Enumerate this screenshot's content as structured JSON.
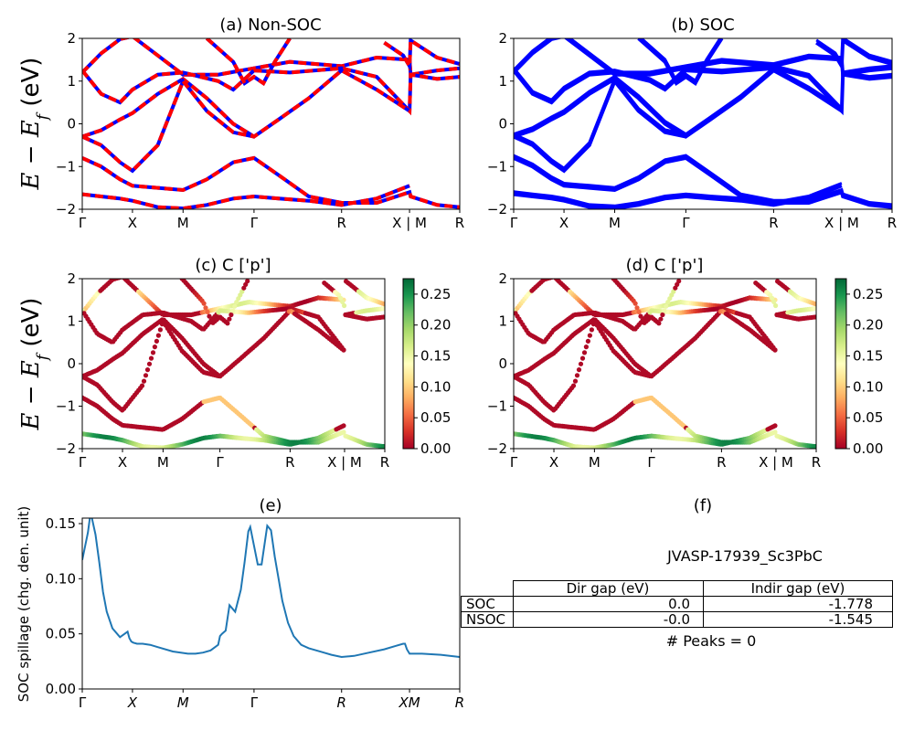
{
  "figure": {
    "ylabel_prefix": "E − E",
    "ylabel_sub": "f",
    "ylabel_suffix": " (eV)"
  },
  "colors": {
    "blue": "#0000ff",
    "red": "#ff0000",
    "spill": "#1f77b4"
  },
  "chart_data": [
    {
      "id": "a",
      "type": "line",
      "title": "(a) Non-SOC",
      "ylim": [
        -2,
        2
      ],
      "yticks": [
        "2",
        "1",
        "0",
        "−1",
        "−2"
      ],
      "xticks": [
        "Γ",
        "X",
        "M",
        "Γ",
        "R",
        "X | M",
        "R"
      ],
      "kpos": [
        0,
        0.133,
        0.267,
        0.455,
        0.687,
        0.867,
        1.0
      ],
      "style": "red dashed over blue",
      "bands_sample": [
        {
          "name": "band1",
          "x": [
            0,
            0.133,
            0.267,
            0.455
          ],
          "y": [
            1.2,
            2.0,
            1.1,
            1.3
          ]
        },
        {
          "name": "band2",
          "x": [
            0,
            0.133,
            0.267,
            0.455
          ],
          "y": [
            -0.3,
            0.2,
            1.1,
            -0.3
          ]
        },
        {
          "name": "band3",
          "x": [
            0,
            0.133,
            0.267,
            0.455
          ],
          "y": [
            -0.8,
            -1.45,
            -1.55,
            -0.8
          ]
        }
      ]
    },
    {
      "id": "b",
      "type": "line",
      "title": "(b) SOC",
      "ylim": [
        -2,
        2
      ],
      "yticks": [
        "2",
        "1",
        "0",
        "−1",
        "−2"
      ],
      "xticks": [
        "Γ",
        "X",
        "M",
        "Γ",
        "R",
        "X | M",
        "R"
      ],
      "style": "blue"
    },
    {
      "id": "c",
      "type": "scatter",
      "title": "(c)  C ['p']",
      "ylim": [
        -2,
        2
      ],
      "yticks": [
        "2",
        "1",
        "0",
        "−1",
        "−2"
      ],
      "xticks": [
        "Γ",
        "X",
        "M",
        "Γ",
        "R",
        "X | M",
        "R"
      ],
      "colorbar": {
        "ticks": [
          "0.25",
          "0.20",
          "0.15",
          "0.10",
          "0.05",
          "0.00"
        ],
        "range": [
          0,
          0.275
        ],
        "cmap": "RdYlGn"
      }
    },
    {
      "id": "d",
      "type": "scatter",
      "title": "(d) C ['p']",
      "ylim": [
        -2,
        2
      ],
      "yticks": [
        "2",
        "1",
        "0",
        "−1",
        "−2"
      ],
      "xticks": [
        "Γ",
        "X",
        "M",
        "Γ",
        "R",
        "X | M",
        "R"
      ],
      "colorbar": {
        "ticks": [
          "0.25",
          "0.20",
          "0.15",
          "0.10",
          "0.05",
          "0.00"
        ],
        "range": [
          0,
          0.275
        ],
        "cmap": "RdYlGn"
      }
    },
    {
      "id": "e",
      "type": "line",
      "title": "(e)",
      "ylabel": "SOC spillage (chg. den. unit)",
      "ylim": [
        0,
        0.155
      ],
      "yticks": [
        "0.15",
        "0.10",
        "0.05",
        "0.00"
      ],
      "xticks": [
        "Γ",
        "X",
        "M",
        "Γ",
        "R",
        "XM",
        "R"
      ],
      "x": [
        0,
        0.015,
        0.02,
        0.025,
        0.035,
        0.045,
        0.055,
        0.065,
        0.08,
        0.1,
        0.12,
        0.125,
        0.13,
        0.135,
        0.145,
        0.16,
        0.18,
        0.2,
        0.24,
        0.28,
        0.3,
        0.32,
        0.34,
        0.36,
        0.365,
        0.37,
        0.38,
        0.39,
        0.405,
        0.42,
        0.43,
        0.44,
        0.445,
        0.455,
        0.465,
        0.475,
        0.49,
        0.5,
        0.51,
        0.52,
        0.53,
        0.545,
        0.56,
        0.58,
        0.6,
        0.62,
        0.64,
        0.66,
        0.687,
        0.72,
        0.76,
        0.8,
        0.83,
        0.85,
        0.855,
        0.86,
        0.867,
        0.9,
        0.95,
        1.0
      ],
      "y": [
        0.117,
        0.142,
        0.155,
        0.156,
        0.14,
        0.115,
        0.088,
        0.07,
        0.055,
        0.047,
        0.052,
        0.046,
        0.043,
        0.042,
        0.041,
        0.041,
        0.04,
        0.038,
        0.034,
        0.032,
        0.032,
        0.033,
        0.035,
        0.04,
        0.048,
        0.05,
        0.053,
        0.076,
        0.07,
        0.09,
        0.115,
        0.143,
        0.147,
        0.13,
        0.113,
        0.113,
        0.148,
        0.144,
        0.12,
        0.1,
        0.08,
        0.06,
        0.048,
        0.04,
        0.037,
        0.035,
        0.033,
        0.031,
        0.029,
        0.03,
        0.033,
        0.036,
        0.039,
        0.041,
        0.041,
        0.036,
        0.032,
        0.032,
        0.031,
        0.029
      ]
    },
    {
      "id": "f",
      "type": "table",
      "title": "(f)",
      "subtitle": "JVASP-17939_Sc3PbC",
      "columns": [
        "",
        "Dir gap (eV)",
        "Indir gap (eV)"
      ],
      "rows": [
        [
          "SOC",
          "0.0",
          "-1.778"
        ],
        [
          "NSOC",
          "-0.0",
          "-1.545"
        ]
      ],
      "footer": "# Peaks = 0"
    }
  ]
}
